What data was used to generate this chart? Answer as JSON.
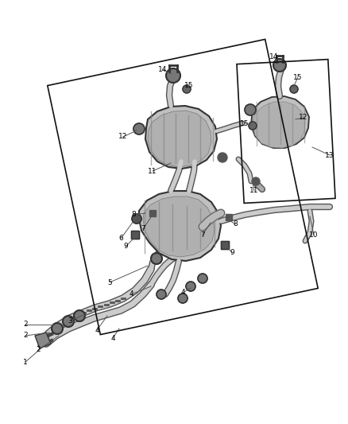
{
  "background_color": "#ffffff",
  "fig_width": 4.38,
  "fig_height": 5.33,
  "dpi": 100,
  "label_fontsize": 6.5,
  "label_color": "#000000",
  "line_color": "#111111",
  "pipe_color": "#888888",
  "pipe_outline": "#333333",
  "part_fill": "#aaaaaa",
  "part_edge": "#222222"
}
